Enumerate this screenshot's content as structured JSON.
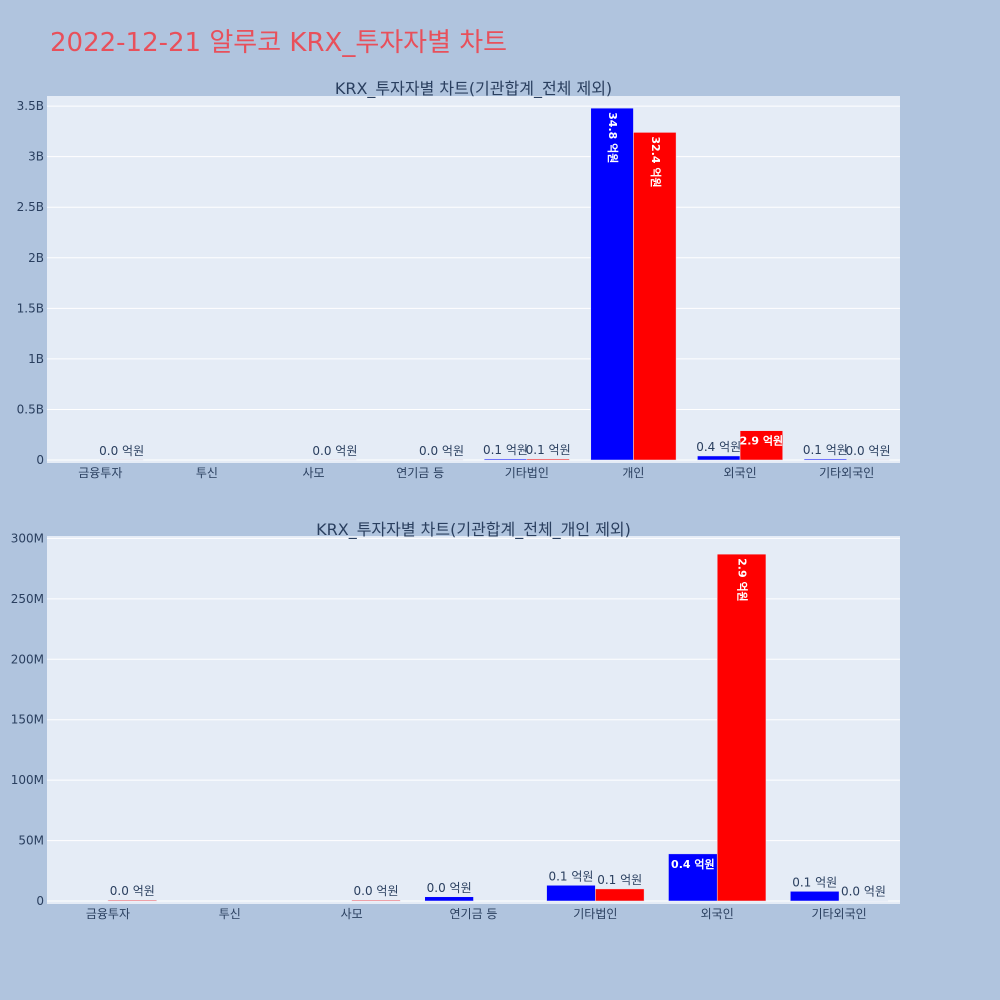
{
  "page": {
    "title": "2022-12-21 알루코 KRX_투자자별 차트",
    "background": "#b0c4de",
    "title_color": "#e8505b"
  },
  "colors": {
    "buy": "#0000ff",
    "sell": "#ff0000",
    "plot_bg": "#e5ecf6",
    "grid": "#ffffff",
    "text": "#2a3f5f"
  },
  "chart_data": [
    {
      "type": "bar",
      "title": "KRX_투자자별 차트(기관합계_전체 제외)",
      "categories": [
        "금융투자",
        "투신",
        "사모",
        "연기금 등",
        "기타법인",
        "개인",
        "외국인",
        "기타외국인"
      ],
      "ylim": [
        0,
        3600000000.0
      ],
      "yticks": [
        0,
        500000000.0,
        1000000000.0,
        1500000000.0,
        2000000000.0,
        2500000000.0,
        3000000000.0,
        3500000000.0
      ],
      "ytick_labels": [
        "0",
        "0.5B",
        "1B",
        "1.5B",
        "2B",
        "2.5B",
        "3B",
        "3.5B"
      ],
      "grid": true,
      "series": [
        {
          "color": "#0000ff",
          "values": [
            0,
            0,
            0,
            0,
            10000000,
            3480000000,
            40000000,
            10000000
          ],
          "labels": [
            "",
            "",
            "",
            "",
            "0.1 억원",
            "34.8 억원",
            "0.4 억원",
            "0.1 억원"
          ]
        },
        {
          "color": "#ff0000",
          "values": [
            1000000,
            0,
            1000000,
            1000000,
            10000000,
            3240000000,
            290000000,
            1000000
          ],
          "labels": [
            "0.0 억원",
            "",
            "0.0 억원",
            "0.0 억원",
            "0.1 억원",
            "32.4 억원",
            "2.9 억원",
            "0.0 억원"
          ]
        }
      ]
    },
    {
      "type": "bar",
      "title": "KRX_투자자별 차트(기관합계_전체_개인 제외)",
      "categories": [
        "금융투자",
        "투신",
        "사모",
        "연기금 등",
        "기타법인",
        "외국인",
        "기타외국인"
      ],
      "ylim": [
        0,
        302000000
      ],
      "yticks": [
        0,
        50000000,
        100000000,
        150000000,
        200000000,
        250000000,
        300000000
      ],
      "ytick_labels": [
        "0",
        "50M",
        "100M",
        "150M",
        "200M",
        "250M",
        "300M"
      ],
      "grid": true,
      "series": [
        {
          "color": "#0000ff",
          "values": [
            0,
            0,
            0,
            3500000,
            13000000,
            39000000,
            8000000
          ],
          "labels": [
            "",
            "",
            "",
            "0.0 억원",
            "0.1 억원",
            "0.4 억원",
            "0.1 억원"
          ]
        },
        {
          "color": "#ff0000",
          "values": [
            700000,
            0,
            700000,
            0,
            10000000,
            287000000,
            400000
          ],
          "labels": [
            "0.0 억원",
            "",
            "0.0 억원",
            "",
            "0.1 억원",
            "2.9 억원",
            "0.0 억원"
          ]
        }
      ]
    }
  ]
}
